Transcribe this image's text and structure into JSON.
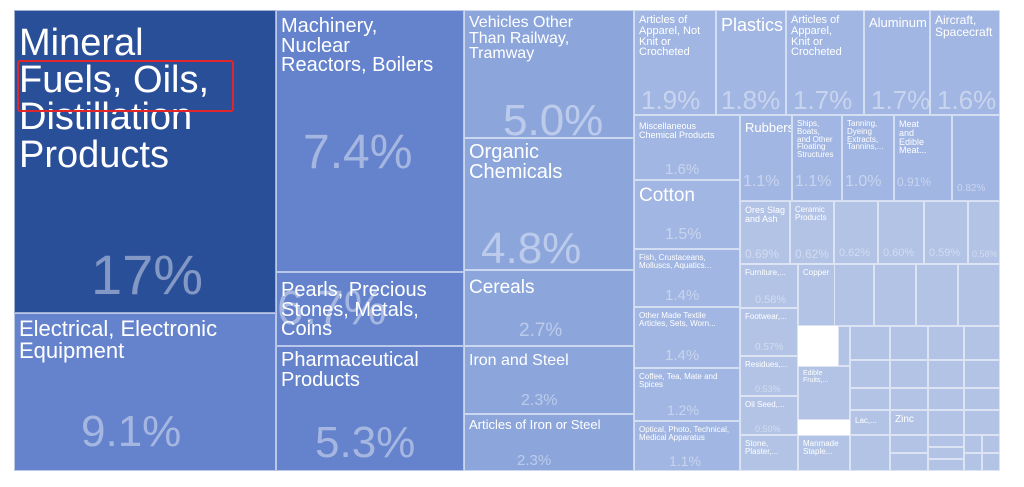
{
  "colors": {
    "dark": "#2a4f99",
    "mid": "#6583cc",
    "light": "#8ca6dc",
    "lighter": "#a1b6e2",
    "pale": "#b2c3e6",
    "highlight": "#e0262b",
    "text": "#ffffff"
  },
  "chart_data": {
    "type": "treemap",
    "unit": "%",
    "items": [
      {
        "label": "Mineral\nFuels, Oils, Distillation\nProducts",
        "value": 17,
        "display": "17%"
      },
      {
        "label": "Electrical, Electronic\nEquipment",
        "value": 9.1,
        "display": "9.1%"
      },
      {
        "label": "Machinery,\nNuclear\nReactors, Boilers",
        "value": 7.4,
        "display": "7.4%"
      },
      {
        "label": "Pearls, Precious\nStones, Metals,\nCoins",
        "value": 6.7,
        "display": "6.7%"
      },
      {
        "label": "Pharmaceutical\nProducts",
        "value": 5.3,
        "display": "5.3%"
      },
      {
        "label": "Vehicles Other\nThan Railway,\nTramway",
        "value": 5.0,
        "display": "5.0%"
      },
      {
        "label": "Organic\nChemicals",
        "value": 4.8,
        "display": "4.8%"
      },
      {
        "label": "Cereals",
        "value": 2.7,
        "display": "2.7%"
      },
      {
        "label": "Iron and Steel",
        "value": 2.3,
        "display": "2.3%"
      },
      {
        "label": "Articles of Iron or Steel",
        "value": 2.3,
        "display": "2.3%"
      },
      {
        "label": "Articles of\nApparel, Not\nKnit or\nCrocheted",
        "value": 1.9,
        "display": "1.9%"
      },
      {
        "label": "Plastics",
        "value": 1.8,
        "display": "1.8%"
      },
      {
        "label": "Articles of\nApparel,\nKnit or\nCrocheted",
        "value": 1.7,
        "display": "1.7%"
      },
      {
        "label": "Aluminum",
        "value": 1.7,
        "display": "1.7%"
      },
      {
        "label": "Aircraft,\nSpacecraft",
        "value": 1.6,
        "display": "1.6%"
      },
      {
        "label": "Miscellaneous\nChemical Products",
        "value": 1.6,
        "display": "1.6%"
      },
      {
        "label": "Cotton",
        "value": 1.5,
        "display": "1.5%"
      },
      {
        "label": "Fish, Crustaceans,\nMolluscs, Aquatics...",
        "value": 1.4,
        "display": "1.4%"
      },
      {
        "label": "Other Made Textile\nArticles, Sets, Worn...",
        "value": 1.4,
        "display": "1.4%"
      },
      {
        "label": "Coffee, Tea, Mate and\nSpices",
        "value": 1.2,
        "display": "1.2%"
      },
      {
        "label": "Optical, Photo, Technical,\nMedical Apparatus",
        "value": 1.1,
        "display": "1.1%"
      },
      {
        "label": "Rubbers",
        "value": 1.1,
        "display": "1.1%"
      },
      {
        "label": "Ships, Boats,\nand Other\nFloating\nStructures",
        "value": 1.1,
        "display": "1.1%"
      },
      {
        "label": "Tanning,\nDyeing\nExtracts,\nTannins,...",
        "value": 1.0,
        "display": "1.0%"
      },
      {
        "label": "Meat\nand\nEdible\nMeat...",
        "value": 0.91,
        "display": "0.91%"
      },
      {
        "label": "",
        "value": 0.82,
        "display": "0.82%"
      },
      {
        "label": "Ores Slag\nand Ash",
        "value": 0.69,
        "display": "0.69%"
      },
      {
        "label": "Ceramic\nProducts",
        "value": 0.62,
        "display": "0.62%"
      },
      {
        "label": "",
        "value": 0.62,
        "display": "0.62%"
      },
      {
        "label": "",
        "value": 0.6,
        "display": "0.60%"
      },
      {
        "label": "",
        "value": 0.59,
        "display": "0.59%"
      },
      {
        "label": "",
        "value": 0.58,
        "display": "0.58%"
      },
      {
        "label": "Furniture,...",
        "value": 0.58,
        "display": "0.58%"
      },
      {
        "label": "Copper",
        "value": 0.41,
        "display": "0.41%"
      },
      {
        "label": "Footwear,...",
        "value": 0.57,
        "display": "0.57%"
      },
      {
        "label": "Residues,...",
        "value": 0.53,
        "display": "0.53%"
      },
      {
        "label": "Edible\nFruits,...",
        "value": null,
        "display": ""
      },
      {
        "label": "Oil Seed,...",
        "value": 0.5,
        "display": "0.50%"
      },
      {
        "label": "Lac,...",
        "value": null,
        "display": ""
      },
      {
        "label": "Zinc",
        "value": null,
        "display": ""
      },
      {
        "label": "Stone,\nPlaster,...",
        "value": null,
        "display": ""
      },
      {
        "label": "Manmade\nStaple...",
        "value": null,
        "display": ""
      }
    ]
  }
}
